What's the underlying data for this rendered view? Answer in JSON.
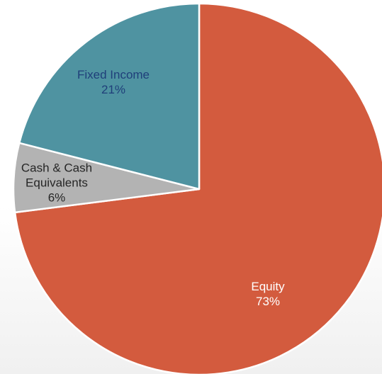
{
  "chart_data": {
    "type": "pie",
    "categories": [
      "Equity",
      "Cash & Cash Equivalents",
      "Fixed Income"
    ],
    "values": [
      73,
      6,
      21
    ],
    "value_labels": [
      "73%",
      "6%",
      "21%"
    ],
    "colors": [
      "#d35b3e",
      "#b3b3b3",
      "#4f93a1"
    ],
    "label_colors": [
      "#ffffff",
      "#262626",
      "#1f3f7a"
    ]
  }
}
